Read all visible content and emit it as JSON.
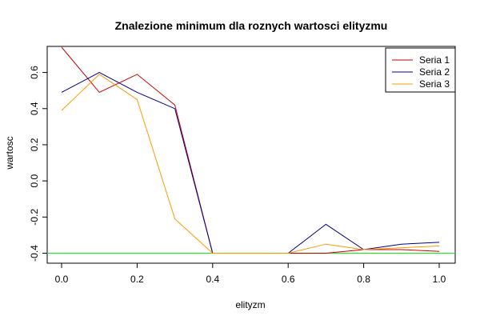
{
  "chart_data": {
    "type": "line",
    "title": "Znalezione minimum dla roznych wartosci elityzmu",
    "xlabel": "elityzm",
    "ylabel": "wartosc",
    "x": [
      0.0,
      0.1,
      0.2,
      0.3,
      0.4,
      0.5,
      0.6,
      0.7,
      0.8,
      0.9,
      1.0
    ],
    "xlim": [
      0.0,
      1.0
    ],
    "ylim": [
      -0.4,
      0.7
    ],
    "xticks": [
      0.0,
      0.2,
      0.4,
      0.6,
      0.8,
      1.0
    ],
    "xtick_labels": [
      "0.0",
      "0.2",
      "0.4",
      "0.6",
      "0.8",
      "1.0"
    ],
    "yticks": [
      -0.4,
      -0.2,
      0.0,
      0.2,
      0.4,
      0.6
    ],
    "ytick_labels": [
      "-0.4",
      "-0.2",
      "0.0",
      "0.2",
      "0.4",
      "0.6"
    ],
    "series": [
      {
        "name": "Seria 1",
        "color": "#cc0000",
        "values": [
          0.74,
          0.49,
          0.59,
          0.42,
          -0.4,
          -0.4,
          -0.4,
          -0.4,
          -0.38,
          -0.38,
          -0.39
        ]
      },
      {
        "name": "Seria 2",
        "color": "#00008b",
        "values": [
          0.49,
          0.6,
          0.49,
          0.4,
          -0.4,
          -0.4,
          -0.4,
          -0.24,
          -0.38,
          -0.35,
          -0.34
        ]
      },
      {
        "name": "Seria 3",
        "color": "#ff9900",
        "values": [
          0.39,
          0.59,
          0.45,
          -0.21,
          -0.4,
          -0.4,
          -0.4,
          -0.35,
          -0.38,
          -0.37,
          -0.36
        ]
      }
    ],
    "reference_line": {
      "y": -0.4,
      "color": "#33dd33"
    },
    "legend_position": "top-right",
    "grid": false
  }
}
